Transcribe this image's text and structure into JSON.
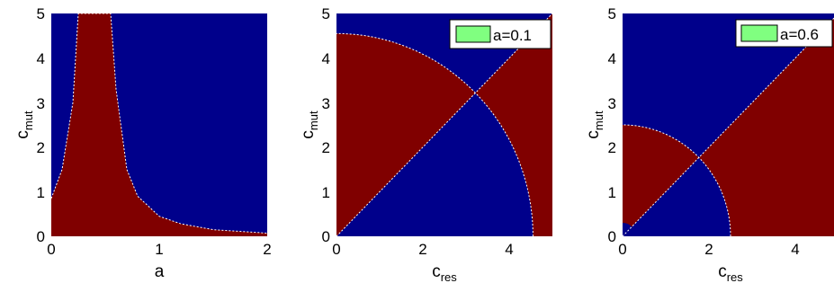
{
  "chart_data": [
    {
      "type": "heatmap",
      "title": "",
      "xlabel": "a",
      "ylabel": {
        "base": "c",
        "sub": "mut"
      },
      "xlim": [
        0,
        2
      ],
      "ylim": [
        0,
        5
      ],
      "xticks": [
        "0",
        "1",
        "2"
      ],
      "yticks": [
        "0",
        "1",
        "2",
        "3",
        "4",
        "5"
      ],
      "legend": null,
      "region_colors": {
        "red": "#800000",
        "blue": "#00008b"
      },
      "regions": [
        {
          "color": "red",
          "description": "below boundary curve",
          "boundary": {
            "a": [
              0,
              0.1,
              0.2,
              0.25,
              0.3,
              0.5,
              0.55,
              0.6,
              0.7,
              0.8,
              1.0,
              1.2,
              1.5,
              2.0
            ],
            "c_mut": [
              0.85,
              1.5,
              3.0,
              5.0,
              5.0,
              5.0,
              5.0,
              3.3,
              1.5,
              0.9,
              0.45,
              0.28,
              0.15,
              0.07
            ]
          }
        },
        {
          "color": "blue",
          "description": "above boundary curve"
        }
      ]
    },
    {
      "type": "heatmap",
      "title": "",
      "xlabel": {
        "base": "c",
        "sub": "res"
      },
      "ylabel": {
        "base": "c",
        "sub": "mut"
      },
      "xlim": [
        0,
        5
      ],
      "ylim": [
        0,
        5
      ],
      "xticks": [
        "0",
        "2",
        "4"
      ],
      "yticks": [
        "0",
        "1",
        "2",
        "3",
        "4",
        "5"
      ],
      "legend": {
        "label": "a=0.1",
        "color": "#80ff80",
        "position": "top-right"
      },
      "region_colors": {
        "red": "#800000",
        "blue": "#00008b"
      },
      "boundaries": {
        "circle_radius": 4.55,
        "diagonal": "c_mut = c_res"
      },
      "regions": [
        {
          "color": "red",
          "description": "inside circle, above diagonal"
        },
        {
          "color": "red",
          "description": "outside circle, below diagonal"
        },
        {
          "color": "blue",
          "description": "inside circle, below diagonal"
        },
        {
          "color": "blue",
          "description": "outside circle, above diagonal"
        }
      ]
    },
    {
      "type": "heatmap",
      "title": "",
      "xlabel": {
        "base": "c",
        "sub": "res"
      },
      "ylabel": {
        "base": "c",
        "sub": "mut"
      },
      "xlim": [
        0,
        5
      ],
      "ylim": [
        0,
        5
      ],
      "xticks": [
        "0",
        "2",
        "4"
      ],
      "yticks": [
        "0",
        "1",
        "2",
        "3",
        "4",
        "5"
      ],
      "legend": {
        "label": "a=0.6",
        "color": "#80ff80",
        "position": "top-right"
      },
      "region_colors": {
        "red": "#800000",
        "blue": "#00008b"
      },
      "boundaries": {
        "circle_radius": 2.5,
        "diagonal": "c_mut = c_res",
        "small_circle_radius": 0.55
      },
      "regions": [
        {
          "color": "red",
          "description": "inside circle, above diagonal"
        },
        {
          "color": "red",
          "description": "outside circle, below diagonal"
        },
        {
          "color": "blue",
          "description": "inside circle, below diagonal"
        },
        {
          "color": "blue",
          "description": "outside circle, above diagonal"
        }
      ]
    }
  ]
}
